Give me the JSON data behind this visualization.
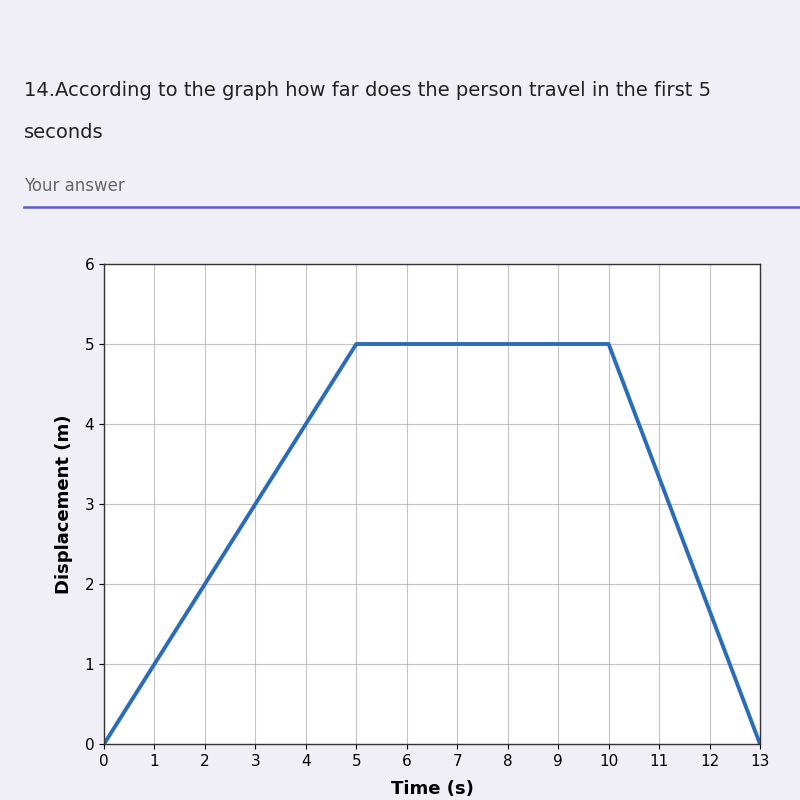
{
  "question_text_line1": "14.According to the graph how far does the person travel in the first 5",
  "question_text_line2": "seconds",
  "your_answer_label": "Your answer",
  "line_x": [
    0,
    5,
    10,
    13
  ],
  "line_y": [
    0,
    5,
    5,
    0
  ],
  "xlabel": "Time (s)",
  "ylabel": "Displacement (m)",
  "xlim": [
    0,
    13
  ],
  "ylim": [
    0,
    6
  ],
  "xticks": [
    0,
    1,
    2,
    3,
    4,
    5,
    6,
    7,
    8,
    9,
    10,
    11,
    12,
    13
  ],
  "yticks": [
    0,
    1,
    2,
    3,
    4,
    5,
    6
  ],
  "line_color": "#2B6CB8",
  "line_width": 2.8,
  "grid_color": "#AAAAAA",
  "chart_bg_color": "#FFFFFF",
  "page_bg_color": "#F0EFF5",
  "top_strip_color": "#D8D5E8",
  "underline_color": "#5B5BD6",
  "question_fontsize": 14,
  "axis_label_fontsize": 13,
  "tick_fontsize": 11
}
